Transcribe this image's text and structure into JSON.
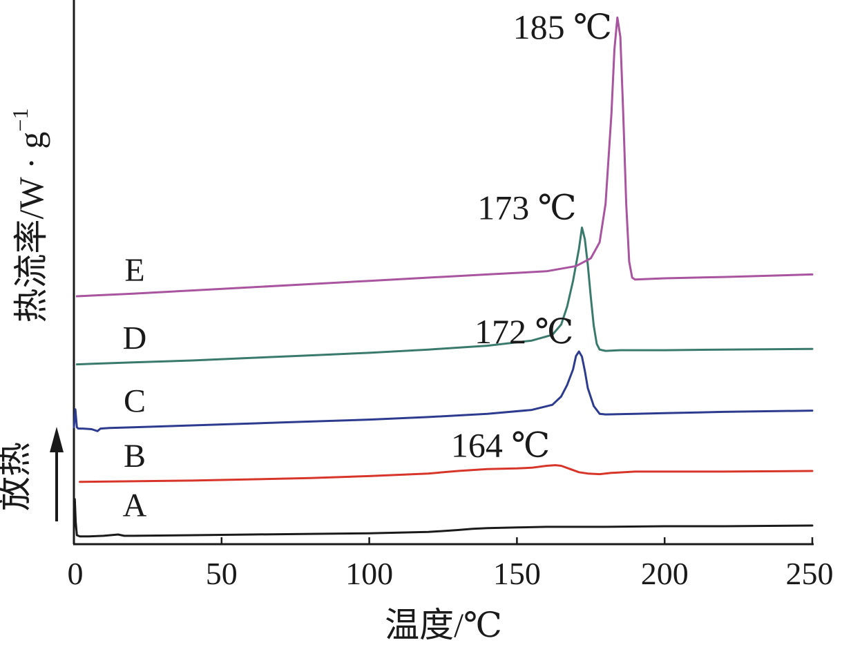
{
  "chart_data": {
    "type": "line",
    "title": "",
    "xlabel": "温度/℃",
    "ylabel": "热流率/W · g",
    "ylabel_superscript": "−1",
    "exo_label": "放热",
    "xlim": [
      0,
      250
    ],
    "x_ticks": [
      "0",
      "50",
      "100",
      "150",
      "200",
      "250"
    ],
    "y_ticks_shown": false,
    "grid": false,
    "legend": "none",
    "series": [
      {
        "name": "A",
        "color": "#1a1a1a",
        "x": [
          0,
          0.3,
          0.6,
          1,
          2,
          5,
          10,
          15,
          17,
          20,
          40,
          60,
          80,
          100,
          120,
          130,
          135,
          140,
          150,
          160,
          170,
          180,
          200,
          220,
          250
        ],
        "y": [
          0.2,
          0.7,
          0.35,
          0.14,
          0.12,
          0.12,
          0.13,
          0.15,
          0.13,
          0.13,
          0.14,
          0.15,
          0.16,
          0.17,
          0.19,
          0.22,
          0.24,
          0.25,
          0.26,
          0.27,
          0.27,
          0.27,
          0.28,
          0.28,
          0.29
        ]
      },
      {
        "name": "B",
        "color": "#d8352a",
        "x": [
          2,
          20,
          40,
          60,
          80,
          100,
          120,
          130,
          140,
          150,
          155,
          160,
          163,
          165,
          168,
          171,
          174,
          178,
          182,
          190,
          200,
          220,
          250
        ],
        "y": [
          0.97,
          0.98,
          0.99,
          1.01,
          1.03,
          1.06,
          1.1,
          1.14,
          1.17,
          1.18,
          1.19,
          1.22,
          1.23,
          1.22,
          1.17,
          1.12,
          1.1,
          1.09,
          1.11,
          1.13,
          1.13,
          1.13,
          1.14
        ]
      },
      {
        "name": "C",
        "color": "#2c3b8e",
        "x": [
          0,
          0.5,
          1,
          1.5,
          3,
          6,
          8,
          9,
          12,
          20,
          40,
          60,
          80,
          100,
          120,
          140,
          155,
          162,
          165,
          167,
          169,
          170,
          171,
          172,
          173,
          174,
          176,
          178,
          180,
          190,
          200,
          220,
          250
        ],
        "y": [
          1.82,
          2.1,
          1.82,
          1.8,
          1.8,
          1.79,
          1.76,
          1.8,
          1.81,
          1.82,
          1.85,
          1.88,
          1.91,
          1.94,
          1.98,
          2.03,
          2.09,
          2.17,
          2.3,
          2.48,
          2.72,
          2.93,
          3.0,
          2.92,
          2.7,
          2.43,
          2.15,
          2.03,
          2.02,
          2.03,
          2.04,
          2.06,
          2.08
        ]
      },
      {
        "name": "D",
        "color": "#3a7a6c",
        "x": [
          1,
          20,
          40,
          60,
          80,
          100,
          120,
          140,
          155,
          162,
          165,
          167,
          169,
          171,
          172,
          173,
          174,
          175,
          176,
          177,
          178,
          180,
          185,
          200,
          220,
          250
        ],
        "y": [
          2.8,
          2.83,
          2.86,
          2.9,
          2.94,
          2.98,
          3.03,
          3.09,
          3.17,
          3.26,
          3.42,
          3.7,
          4.1,
          4.6,
          4.93,
          4.75,
          4.35,
          3.85,
          3.4,
          3.12,
          3.03,
          3.01,
          3.02,
          3.02,
          3.03,
          3.04
        ]
      },
      {
        "name": "E",
        "color": "#a8549e",
        "x": [
          1,
          20,
          40,
          60,
          80,
          100,
          120,
          140,
          160,
          170,
          175,
          178,
          180,
          182,
          183,
          184,
          185,
          186,
          187,
          188,
          189,
          190,
          195,
          200,
          220,
          250
        ],
        "y": [
          3.86,
          3.9,
          3.95,
          4.0,
          4.05,
          4.1,
          4.15,
          4.2,
          4.25,
          4.33,
          4.45,
          4.7,
          5.3,
          6.7,
          7.7,
          8.2,
          7.9,
          6.7,
          5.3,
          4.4,
          4.15,
          4.12,
          4.13,
          4.14,
          4.16,
          4.2
        ]
      }
    ],
    "curve_labels": [
      {
        "text": "A",
        "series": "A"
      },
      {
        "text": "B",
        "series": "B"
      },
      {
        "text": "C",
        "series": "C"
      },
      {
        "text": "D",
        "series": "D"
      },
      {
        "text": "E",
        "series": "E"
      }
    ],
    "annotations": [
      {
        "text": "164 ℃",
        "x": 164,
        "y": 1.23
      },
      {
        "text": "172 ℃",
        "x": 172,
        "y": 3.0
      },
      {
        "text": "173 ℃",
        "x": 173,
        "y": 4.93
      },
      {
        "text": "185 ℃",
        "x": 185,
        "y": 8.2
      }
    ]
  }
}
